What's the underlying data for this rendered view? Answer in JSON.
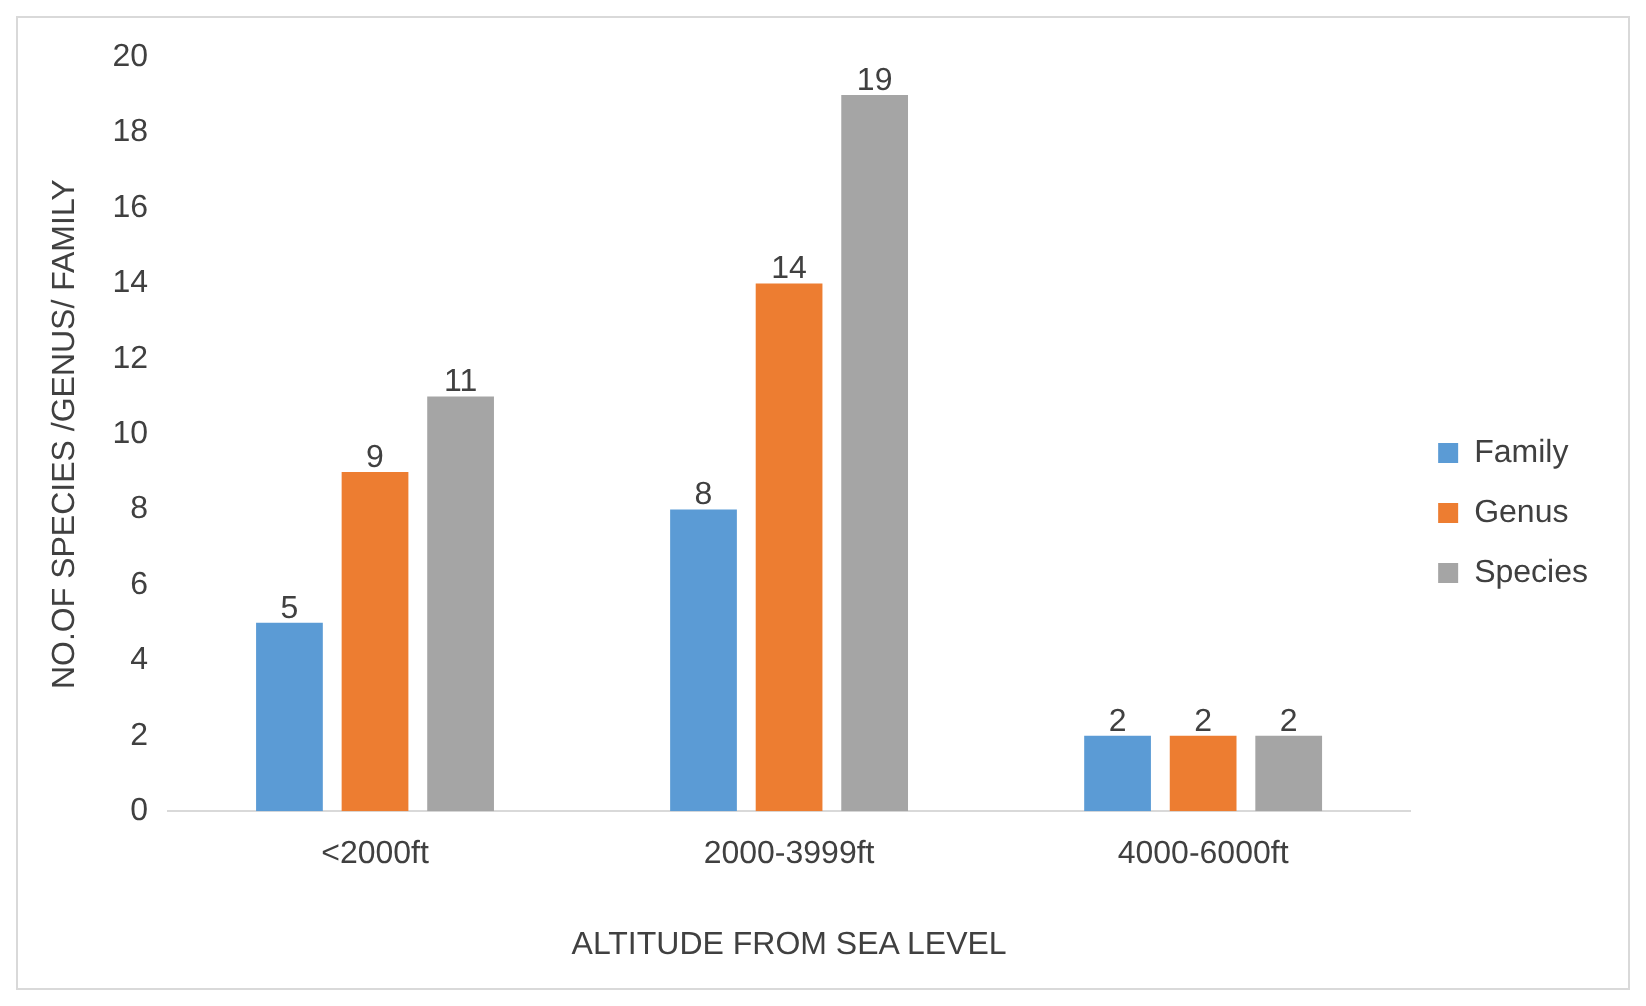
{
  "chart_data": {
    "type": "bar",
    "xlabel": "ALTITUDE FROM SEA LEVEL",
    "ylabel": "NO.OF SPECIES /GENUS/ FAMILY",
    "categories": [
      "<2000ft",
      "2000-3999ft",
      "4000-6000ft"
    ],
    "series": [
      {
        "name": "Family",
        "color": "#5b9bd5",
        "values": [
          5,
          8,
          2
        ]
      },
      {
        "name": "Genus",
        "color": "#ed7d31",
        "values": [
          9,
          14,
          2
        ]
      },
      {
        "name": "Species",
        "color": "#a5a5a5",
        "values": [
          11,
          19,
          2
        ]
      }
    ],
    "ylim": [
      0,
      20
    ],
    "yticks": [
      0,
      2,
      4,
      6,
      8,
      10,
      12,
      14,
      16,
      18,
      20
    ],
    "grid": false,
    "legend": "right",
    "data_labels": true
  }
}
